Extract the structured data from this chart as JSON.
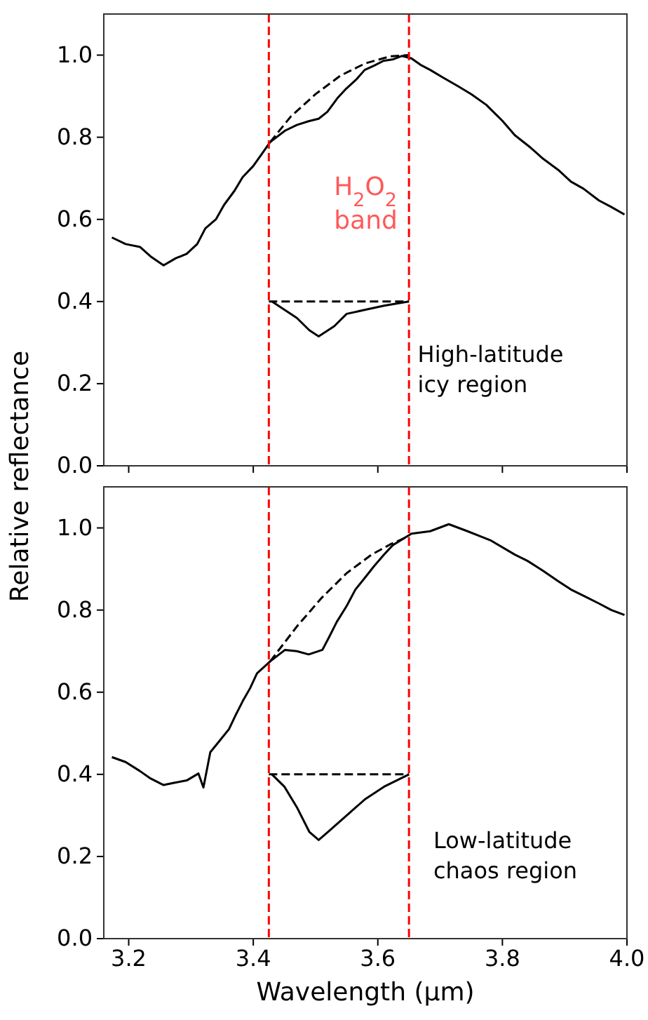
{
  "chart_data": [
    {
      "type": "line",
      "ylabel": "Relative reflectance",
      "xlim": [
        3.16,
        4.0
      ],
      "xticks": [
        {
          "value": 3.2,
          "label": null
        },
        {
          "value": 3.4,
          "label": null
        },
        {
          "value": 3.6,
          "label": null
        },
        {
          "value": 3.8,
          "label": null
        },
        {
          "value": 4.0,
          "label": null
        }
      ],
      "ylim": [
        0,
        1.1
      ],
      "yticks": [
        {
          "value": 0,
          "label": "0.0"
        },
        {
          "value": 0.2,
          "label": "0.2"
        },
        {
          "value": 0.4,
          "label": "0.4"
        },
        {
          "value": 0.6,
          "label": "0.6"
        },
        {
          "value": 0.8,
          "label": "0.8"
        },
        {
          "value": 1.0,
          "label": "1.0"
        }
      ],
      "tick_labels": "y",
      "grid": false,
      "marker": "none",
      "series": [
        {
          "color": "#000000",
          "line_style": "solid",
          "x": [
            3.173,
            3.195,
            3.218,
            3.235,
            3.256,
            3.275,
            3.293,
            3.31,
            3.323,
            3.34,
            3.353,
            3.37,
            3.383,
            3.4,
            3.414,
            3.427,
            3.451,
            3.47,
            3.489,
            3.505,
            3.519,
            3.535,
            3.549,
            3.565,
            3.579,
            3.595,
            3.609,
            3.625,
            3.639,
            3.654,
            3.67,
            3.684,
            3.705,
            3.729,
            3.75,
            3.774,
            3.8,
            3.82,
            3.845,
            3.865,
            3.89,
            3.91,
            3.93,
            3.955,
            3.975,
            3.996
          ],
          "values": [
            0.556,
            0.54,
            0.533,
            0.51,
            0.488,
            0.505,
            0.516,
            0.54,
            0.578,
            0.6,
            0.635,
            0.67,
            0.703,
            0.73,
            0.76,
            0.788,
            0.816,
            0.83,
            0.839,
            0.845,
            0.862,
            0.895,
            0.918,
            0.94,
            0.964,
            0.975,
            0.986,
            0.99,
            0.998,
            0.992,
            0.975,
            0.964,
            0.945,
            0.924,
            0.905,
            0.879,
            0.84,
            0.805,
            0.775,
            0.748,
            0.72,
            0.692,
            0.675,
            0.646,
            0.63,
            0.612
          ]
        },
        {
          "color": "#000000",
          "line_style": "dashed",
          "x": [
            3.427,
            3.46,
            3.5,
            3.54,
            3.58,
            3.62,
            3.65
          ],
          "values": [
            0.788,
            0.85,
            0.905,
            0.95,
            0.98,
            0.997,
            1.0
          ]
        },
        {
          "color": "#000000",
          "line_style": "solid",
          "x": [
            3.43,
            3.45,
            3.47,
            3.49,
            3.505,
            3.53,
            3.55,
            3.58,
            3.61,
            3.65
          ],
          "values": [
            0.4,
            0.38,
            0.36,
            0.33,
            0.315,
            0.34,
            0.37,
            0.38,
            0.39,
            0.4
          ]
        },
        {
          "color": "#000000",
          "line_style": "dashed",
          "x": [
            3.425,
            3.65
          ],
          "values": [
            0.4,
            0.4
          ]
        }
      ],
      "ref_lines": [
        {
          "axis": "x",
          "value": 3.425,
          "color": "#ff0000",
          "line_style": "dashed"
        },
        {
          "axis": "x",
          "value": 3.65,
          "color": "#ff0000",
          "line_style": "dashed"
        }
      ],
      "annotations": [
        "H$_{2}$O$_{2}$\nband",
        "High-latitude\nicy region"
      ]
    },
    {
      "type": "line",
      "xlabel": "Wavelength (μm)",
      "xlim": [
        3.16,
        4.0
      ],
      "xticks": [
        3.2,
        3.4,
        3.6,
        3.8,
        {
          "value": 4.0,
          "label": "4.0"
        }
      ],
      "ylim": [
        0,
        1.1
      ],
      "yticks": [
        {
          "value": 0,
          "label": "0.0"
        },
        {
          "value": 0.2,
          "label": "0.2"
        },
        {
          "value": 0.4,
          "label": "0.4"
        },
        {
          "value": 0.6,
          "label": "0.6"
        },
        {
          "value": 0.8,
          "label": "0.8"
        },
        {
          "value": 1.0,
          "label": "1.0"
        }
      ],
      "grid": false,
      "marker": "none",
      "series": [
        {
          "color": "#000000",
          "line_style": "solid",
          "x": [
            3.173,
            3.195,
            3.218,
            3.235,
            3.256,
            3.275,
            3.293,
            3.312,
            3.32,
            3.331,
            3.345,
            3.361,
            3.372,
            3.383,
            3.395,
            3.406,
            3.427,
            3.451,
            3.47,
            3.489,
            3.511,
            3.522,
            3.534,
            3.55,
            3.564,
            3.58,
            3.594,
            3.61,
            3.624,
            3.654,
            3.684,
            3.714,
            3.744,
            3.782,
            3.82,
            3.84,
            3.865,
            3.89,
            3.91,
            3.93,
            3.955,
            3.975,
            3.996
          ],
          "values": [
            0.442,
            0.43,
            0.408,
            0.39,
            0.374,
            0.38,
            0.385,
            0.402,
            0.368,
            0.454,
            0.48,
            0.51,
            0.545,
            0.578,
            0.61,
            0.646,
            0.675,
            0.703,
            0.7,
            0.692,
            0.703,
            0.735,
            0.771,
            0.81,
            0.85,
            0.88,
            0.907,
            0.935,
            0.958,
            0.986,
            0.992,
            1.009,
            0.992,
            0.969,
            0.935,
            0.92,
            0.896,
            0.87,
            0.85,
            0.835,
            0.816,
            0.8,
            0.788
          ]
        },
        {
          "color": "#000000",
          "line_style": "dashed",
          "x": [
            3.427,
            3.47,
            3.51,
            3.55,
            3.59,
            3.62,
            3.65
          ],
          "values": [
            0.675,
            0.76,
            0.83,
            0.89,
            0.935,
            0.96,
            0.98
          ]
        },
        {
          "color": "#000000",
          "line_style": "solid",
          "x": [
            3.43,
            3.45,
            3.47,
            3.49,
            3.505,
            3.52,
            3.55,
            3.58,
            3.61,
            3.65
          ],
          "values": [
            0.4,
            0.37,
            0.32,
            0.26,
            0.24,
            0.26,
            0.3,
            0.34,
            0.37,
            0.4
          ]
        },
        {
          "color": "#000000",
          "line_style": "dashed",
          "x": [
            3.425,
            3.65
          ],
          "values": [
            0.4,
            0.4
          ]
        }
      ],
      "ref_lines": [
        {
          "axis": "x",
          "value": 3.425,
          "color": "#ff0000",
          "line_style": "dashed"
        },
        {
          "axis": "x",
          "value": 3.65,
          "color": "#ff0000",
          "line_style": "dashed"
        }
      ],
      "annotations": [
        "Low-latitude\nchaos region"
      ]
    }
  ]
}
